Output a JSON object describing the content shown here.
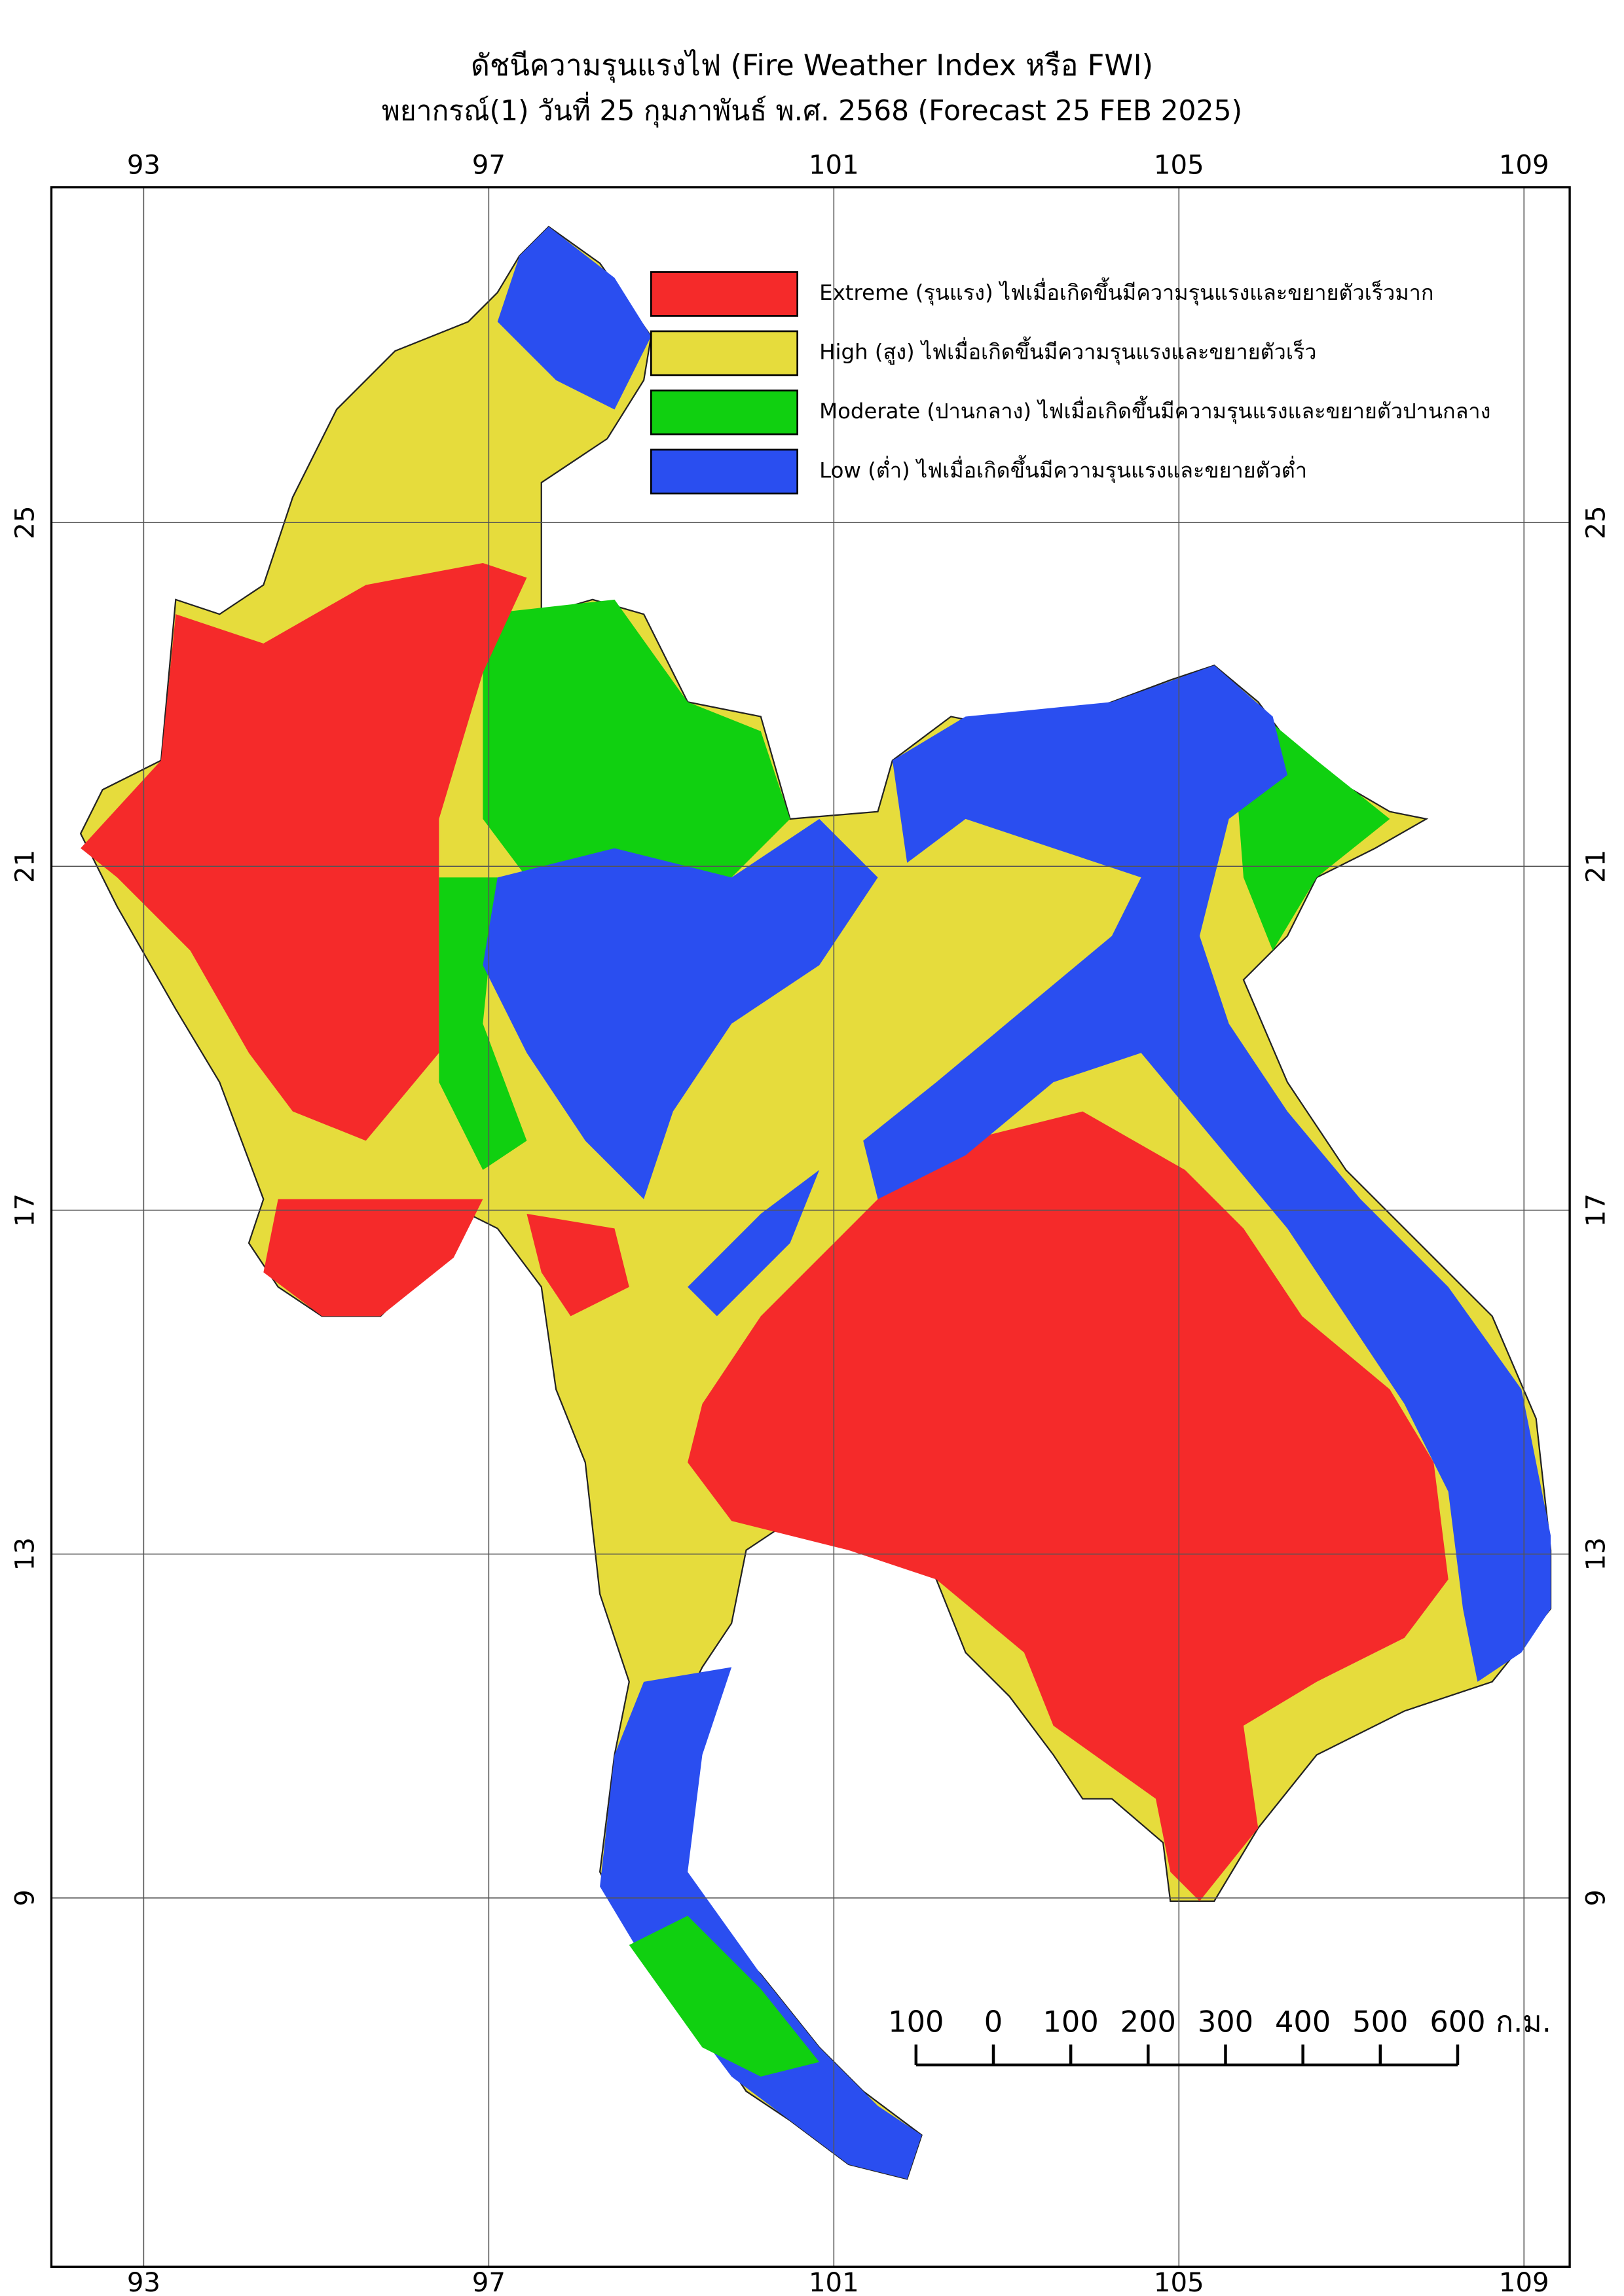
{
  "title": "ดัชนีความรุนแรงไฟ (Fire Weather Index หรือ FWI)",
  "subtitle": "พยากรณ์(1) วันที่ 25 กุมภาพันธ์ พ.ศ. 2568 (Forecast 25 FEB 2025)",
  "map": {
    "xlim": [
      91.93,
      109.53
    ],
    "ylim": [
      4.71,
      28.9
    ],
    "xticks": [
      93,
      97,
      101,
      105,
      109
    ],
    "yticks": [
      25,
      21,
      17,
      13,
      9
    ],
    "grid": true
  },
  "legend": [
    {
      "label": "Extreme (รุนแรง) ไฟเมื่อเกิดขึ้นมีความรุนแรงและขยายตัวเร็วมาก",
      "color": "#f52a2a"
    },
    {
      "label": "High (สูง) ไฟเมื่อเกิดขึ้นมีความรุนแรงและขยายตัวเร็ว",
      "color": "#e6dc3c"
    },
    {
      "label": "Moderate (ปานกลาง) ไฟเมื่อเกิดขึ้นมีความรุนแรงและขยายตัวปานกลาง",
      "color": "#10d010"
    },
    {
      "label": "Low (ต่ำ) ไฟเมื่อเกิดขึ้นมีความรุนแรงและขยายตัวต่ำ",
      "color": "#2a4ef0"
    }
  ],
  "scale_bar": {
    "ticks": [
      {
        "value": -100,
        "label": "100"
      },
      0,
      100,
      200,
      300,
      400,
      500,
      600
    ],
    "unit": "ก.ม."
  }
}
